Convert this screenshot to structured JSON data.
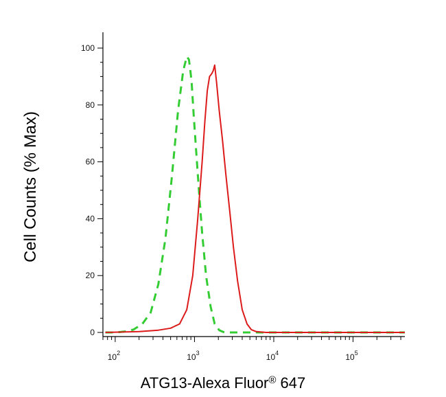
{
  "chart_data": {
    "type": "line",
    "title": "",
    "xlabel_main": "ATG13-Alexa Fluor",
    "xlabel_reg": "®",
    "xlabel_tail": " 647",
    "ylabel": "Cell Counts (% Max)",
    "x_scale": "log",
    "xlim": [
      70,
      450000
    ],
    "ylim": [
      0,
      100
    ],
    "x_ticks": [
      {
        "value": 100,
        "base": "10",
        "exp": "2"
      },
      {
        "value": 1000,
        "base": "10",
        "exp": "3"
      },
      {
        "value": 10000,
        "base": "10",
        "exp": "4"
      },
      {
        "value": 100000,
        "base": "10",
        "exp": "5"
      }
    ],
    "y_ticks": [
      {
        "value": 0,
        "label": "0"
      },
      {
        "value": 20,
        "label": "20"
      },
      {
        "value": 40,
        "label": "40"
      },
      {
        "value": 60,
        "label": "60"
      },
      {
        "value": 80,
        "label": "80"
      },
      {
        "value": 100,
        "label": "100"
      }
    ],
    "grid": false,
    "series": [
      {
        "color": "#33cc33",
        "style": "dashed",
        "x": [
          75,
          100,
          130,
          170,
          220,
          280,
          350,
          430,
          520,
          620,
          720,
          800,
          850,
          880,
          920,
          980,
          1060,
          1150,
          1250,
          1400,
          1600,
          1800,
          2050,
          2300,
          2700,
          3500,
          5000,
          20000,
          450000
        ],
        "y": [
          0,
          0,
          0.3,
          1,
          3,
          7,
          17,
          33,
          55,
          78,
          92,
          97,
          96,
          93,
          88,
          76,
          62,
          48,
          35,
          20,
          9,
          3,
          0.8,
          0.2,
          0,
          0,
          0,
          0,
          0
        ]
      },
      {
        "color": "#dd1a1a",
        "style": "solid",
        "x": [
          75,
          200,
          350,
          500,
          650,
          800,
          950,
          1100,
          1250,
          1350,
          1450,
          1550,
          1650,
          1720,
          1800,
          1900,
          2050,
          2250,
          2500,
          2800,
          3100,
          3500,
          4000,
          4600,
          5200,
          6000,
          8000,
          15000,
          100000,
          450000
        ],
        "y": [
          0,
          0.3,
          0.8,
          1.5,
          3,
          8,
          20,
          40,
          60,
          74,
          85,
          90,
          91,
          92,
          94,
          88,
          78,
          68,
          55,
          42,
          30,
          18,
          8,
          3,
          1,
          0.3,
          0,
          0,
          0,
          0
        ]
      }
    ]
  }
}
